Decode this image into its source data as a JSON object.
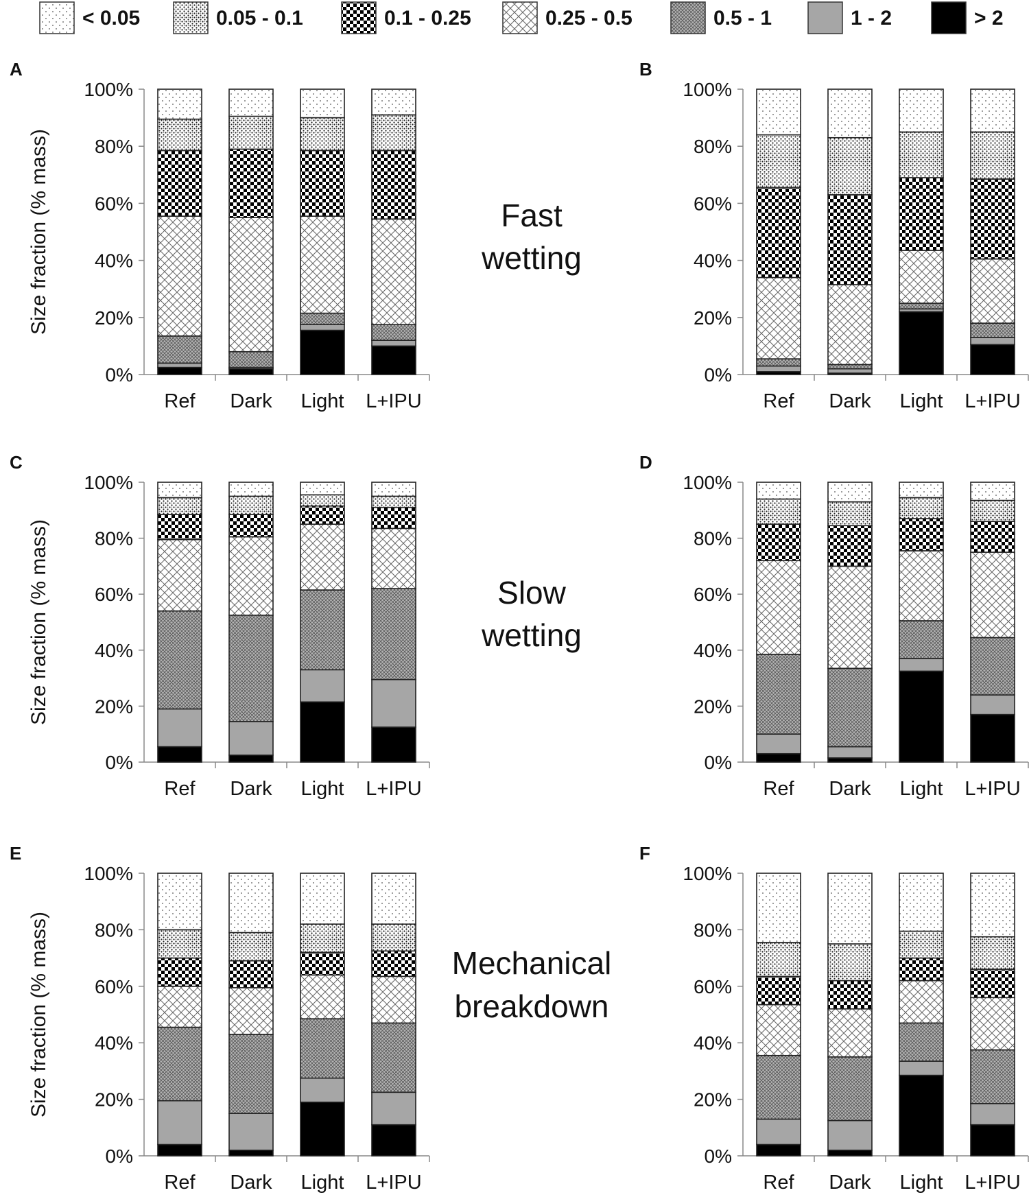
{
  "legend": [
    {
      "key": "lt005",
      "label": "< 0.05"
    },
    {
      "key": "f005_01",
      "label": "0.05 - 0.1"
    },
    {
      "key": "f01_025",
      "label": "0.1 - 0.25"
    },
    {
      "key": "f025_05",
      "label": "0.25 - 0.5"
    },
    {
      "key": "f05_1",
      "label": "0.5 - 1"
    },
    {
      "key": "f1_2",
      "label": "1 - 2"
    },
    {
      "key": "gt2",
      "label": "> 2"
    }
  ],
  "row_labels": [
    [
      "Fast",
      "wetting"
    ],
    [
      "Slow",
      "wetting"
    ],
    [
      "Mechanical",
      "breakdown"
    ]
  ],
  "chart_data": [
    {
      "type": "stacked_bar",
      "panel": "A",
      "categories": [
        "Ref",
        "Dark",
        "Light",
        "L+IPU"
      ],
      "ylabel": "Size fraction (% mass)",
      "ylim": [
        0,
        100
      ],
      "yticks": [
        "0%",
        "20%",
        "40%",
        "60%",
        "80%",
        "100%"
      ],
      "series": [
        {
          "name": "> 2",
          "values": [
            2.5,
            2,
            15.5,
            10
          ]
        },
        {
          "name": "1 - 2",
          "values": [
            1.5,
            0.5,
            2,
            2
          ]
        },
        {
          "name": "0.5 - 1",
          "values": [
            9.5,
            5.5,
            4,
            5.5
          ]
        },
        {
          "name": "0.25 - 0.5",
          "values": [
            42,
            47,
            34,
            37
          ]
        },
        {
          "name": "0.1 - 0.25",
          "values": [
            23,
            24,
            23,
            24
          ]
        },
        {
          "name": "0.05 - 0.1",
          "values": [
            11,
            11.5,
            11.5,
            12.5
          ]
        },
        {
          "name": "< 0.05",
          "values": [
            10.5,
            9.5,
            10,
            9
          ]
        }
      ]
    },
    {
      "type": "stacked_bar",
      "panel": "B",
      "categories": [
        "Ref",
        "Dark",
        "Light",
        "L+IPU"
      ],
      "ylabel": "",
      "ylim": [
        0,
        100
      ],
      "yticks": [
        "0%",
        "20%",
        "40%",
        "60%",
        "80%",
        "100%"
      ],
      "series": [
        {
          "name": "> 2",
          "values": [
            1,
            0.5,
            22,
            10.5
          ]
        },
        {
          "name": "1 - 2",
          "values": [
            2,
            1.5,
            1,
            2.5
          ]
        },
        {
          "name": "0.5 - 1",
          "values": [
            2.5,
            1.5,
            2,
            5
          ]
        },
        {
          "name": "0.25 - 0.5",
          "values": [
            28.5,
            28,
            18.5,
            22.5
          ]
        },
        {
          "name": "0.1 - 0.25",
          "values": [
            31.5,
            31.5,
            25.5,
            28
          ]
        },
        {
          "name": "0.05 - 0.1",
          "values": [
            18.5,
            20,
            16,
            16.5
          ]
        },
        {
          "name": "< 0.05",
          "values": [
            16,
            17,
            15,
            15
          ]
        }
      ]
    },
    {
      "type": "stacked_bar",
      "panel": "C",
      "categories": [
        "Ref",
        "Dark",
        "Light",
        "L+IPU"
      ],
      "ylabel": "Size fraction (% mass)",
      "ylim": [
        0,
        100
      ],
      "yticks": [
        "0%",
        "20%",
        "40%",
        "60%",
        "80%",
        "100%"
      ],
      "series": [
        {
          "name": "> 2",
          "values": [
            5.5,
            2.5,
            21.5,
            12.5
          ]
        },
        {
          "name": "1 - 2",
          "values": [
            13.5,
            12,
            11.5,
            17
          ]
        },
        {
          "name": "0.5 - 1",
          "values": [
            35,
            38,
            28.5,
            32.5
          ]
        },
        {
          "name": "0.25 - 0.5",
          "values": [
            25.5,
            28,
            23.5,
            21.5
          ]
        },
        {
          "name": "0.1 - 0.25",
          "values": [
            9,
            8,
            6.5,
            7.5
          ]
        },
        {
          "name": "0.05 - 0.1",
          "values": [
            6,
            6.5,
            4,
            4
          ]
        },
        {
          "name": "< 0.05",
          "values": [
            5.5,
            5,
            4.5,
            5
          ]
        }
      ]
    },
    {
      "type": "stacked_bar",
      "panel": "D",
      "categories": [
        "Ref",
        "Dark",
        "Light",
        "L+IPU"
      ],
      "ylabel": "",
      "ylim": [
        0,
        100
      ],
      "yticks": [
        "0%",
        "20%",
        "40%",
        "60%",
        "80%",
        "100%"
      ],
      "series": [
        {
          "name": "> 2",
          "values": [
            3,
            1.5,
            32.5,
            17
          ]
        },
        {
          "name": "1 - 2",
          "values": [
            7,
            4,
            4.5,
            7
          ]
        },
        {
          "name": "0.5 - 1",
          "values": [
            28.5,
            28,
            13.5,
            20.5
          ]
        },
        {
          "name": "0.25 - 0.5",
          "values": [
            33.5,
            36.5,
            25,
            30.5
          ]
        },
        {
          "name": "0.1 - 0.25",
          "values": [
            13,
            14.5,
            11.5,
            11
          ]
        },
        {
          "name": "0.05 - 0.1",
          "values": [
            9,
            8.5,
            7.5,
            7.5
          ]
        },
        {
          "name": "< 0.05",
          "values": [
            6,
            7,
            5.5,
            6.5
          ]
        }
      ]
    },
    {
      "type": "stacked_bar",
      "panel": "E",
      "categories": [
        "Ref",
        "Dark",
        "Light",
        "L+IPU"
      ],
      "ylabel": "Size fraction (% mass)",
      "ylim": [
        0,
        100
      ],
      "yticks": [
        "0%",
        "20%",
        "40%",
        "60%",
        "80%",
        "100%"
      ],
      "series": [
        {
          "name": "> 2",
          "values": [
            4,
            2,
            19,
            11
          ]
        },
        {
          "name": "1 - 2",
          "values": [
            15.5,
            13,
            8.5,
            11.5
          ]
        },
        {
          "name": "0.5 - 1",
          "values": [
            26,
            28,
            21,
            24.5
          ]
        },
        {
          "name": "0.25 - 0.5",
          "values": [
            14.5,
            16.5,
            15.5,
            16.5
          ]
        },
        {
          "name": "0.1 - 0.25",
          "values": [
            10,
            9.5,
            8,
            9
          ]
        },
        {
          "name": "0.05 - 0.1",
          "values": [
            10,
            10,
            10,
            9.5
          ]
        },
        {
          "name": "< 0.05",
          "values": [
            20,
            21,
            18,
            18
          ]
        }
      ]
    },
    {
      "type": "stacked_bar",
      "panel": "F",
      "categories": [
        "Ref",
        "Dark",
        "Light",
        "L+IPU"
      ],
      "ylabel": "",
      "ylim": [
        0,
        100
      ],
      "yticks": [
        "0%",
        "20%",
        "40%",
        "60%",
        "80%",
        "100%"
      ],
      "series": [
        {
          "name": "> 2",
          "values": [
            4,
            2,
            28.5,
            11
          ]
        },
        {
          "name": "1 - 2",
          "values": [
            9,
            10.5,
            5,
            7.5
          ]
        },
        {
          "name": "0.5 - 1",
          "values": [
            22.5,
            22.5,
            13.5,
            19
          ]
        },
        {
          "name": "0.25 - 0.5",
          "values": [
            18,
            17,
            15,
            18.5
          ]
        },
        {
          "name": "0.1 - 0.25",
          "values": [
            10,
            10,
            8,
            10
          ]
        },
        {
          "name": "0.05 - 0.1",
          "values": [
            12,
            13,
            9.5,
            11.5
          ]
        },
        {
          "name": "< 0.05",
          "values": [
            24.5,
            25,
            20.5,
            22.5
          ]
        }
      ]
    }
  ]
}
